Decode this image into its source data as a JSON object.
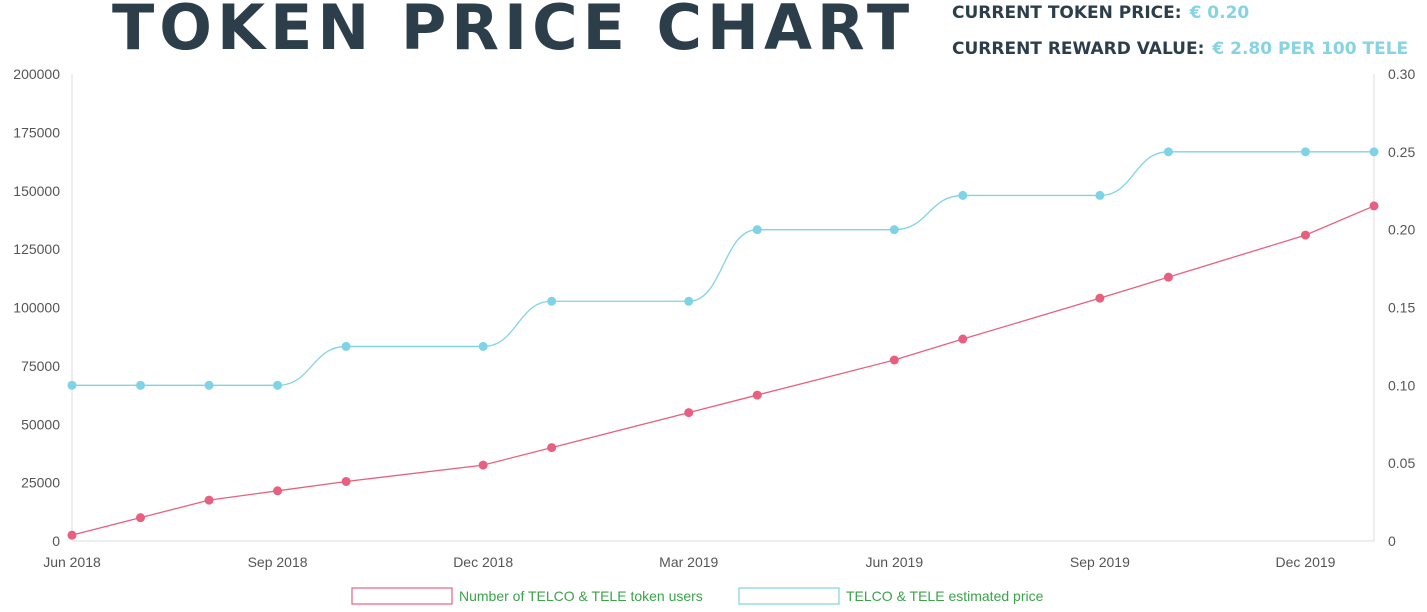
{
  "header": {
    "title": "TOKEN PRICE CHART",
    "current_price_label": "CURRENT TOKEN PRICE:",
    "current_price_value": "€ 0.20",
    "reward_label": "CURRENT REWARD VALUE:",
    "reward_value": "€ 2.80 PER 100 TELE"
  },
  "colors": {
    "users": "#e8607f",
    "price": "#7fd3e6",
    "title": "#2c3e4a",
    "legend_text": "#3aa34a"
  },
  "chart_data": {
    "type": "line",
    "x": [
      "Jun 2018",
      "Jul 2018",
      "Aug 2018",
      "Sep 2018",
      "Oct 2018",
      "Dec 2018",
      "Jan 2019",
      "Mar 2019",
      "Apr 2019",
      "Jun 2019",
      "Jul 2019",
      "Sep 2019",
      "Oct 2019",
      "Dec 2019",
      "Jan 2020"
    ],
    "x_ticks": [
      "Jun 2018",
      "Sep 2018",
      "Dec 2018",
      "Mar 2019",
      "Jun 2019",
      "Sep 2019",
      "Dec 2019"
    ],
    "y_left_ticks": [
      "0",
      "25000",
      "50000",
      "75000",
      "100000",
      "125000",
      "150000",
      "175000",
      "200000"
    ],
    "y_right_ticks": [
      "0",
      "0.05",
      "0.10",
      "0.15",
      "0.20",
      "0.25",
      "0.30"
    ],
    "ylim_left": [
      0,
      200000
    ],
    "ylim_right": [
      0,
      0.3
    ],
    "series": [
      {
        "name": "Number of TELCO & TELE token users",
        "axis": "left",
        "values": [
          2500,
          10000,
          17500,
          21500,
          25500,
          32500,
          40000,
          55000,
          62500,
          77500,
          86500,
          104000,
          113000,
          131000,
          143500
        ]
      },
      {
        "name": "TELCO & TELE estimated price",
        "axis": "right",
        "values": [
          0.1,
          0.1,
          0.1,
          0.1,
          0.125,
          0.125,
          0.154,
          0.154,
          0.2,
          0.2,
          0.222,
          0.222,
          0.25,
          0.25,
          0.25
        ]
      }
    ],
    "grid": false,
    "legend_position": "bottom"
  }
}
